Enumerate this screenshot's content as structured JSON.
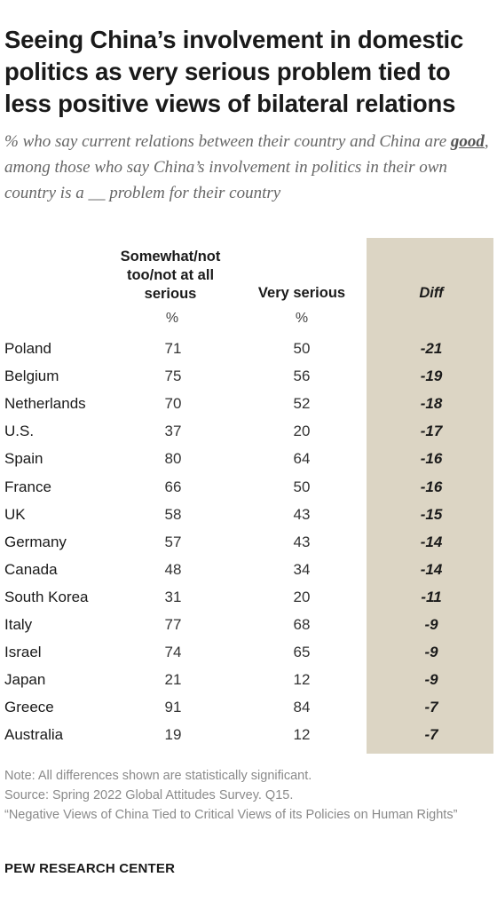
{
  "title": "Seeing China’s involvement in domestic politics as very serious problem tied to less positive views of bilateral relations",
  "subtitle_parts": {
    "before": "% who say current relations between their country and China are ",
    "emphasis": "good",
    "after": ", among those who say China’s involvement in politics in their own country is a __ problem for their country"
  },
  "columns": {
    "col1": "Somewhat/not too/not at all serious",
    "col2": "Very serious",
    "diff": "Diff",
    "unit1": "%",
    "unit2": "%"
  },
  "chart_data": {
    "type": "table",
    "columns": [
      "Somewhat/not too/not at all serious",
      "Very serious",
      "Diff"
    ],
    "rows": [
      {
        "country": "Poland",
        "somewhat": "71",
        "very": "50",
        "diff": "-21"
      },
      {
        "country": "Belgium",
        "somewhat": "75",
        "very": "56",
        "diff": "-19"
      },
      {
        "country": "Netherlands",
        "somewhat": "70",
        "very": "52",
        "diff": "-18"
      },
      {
        "country": "U.S.",
        "somewhat": "37",
        "very": "20",
        "diff": "-17"
      },
      {
        "country": "Spain",
        "somewhat": "80",
        "very": "64",
        "diff": "-16"
      },
      {
        "country": "France",
        "somewhat": "66",
        "very": "50",
        "diff": "-16"
      },
      {
        "country": "UK",
        "somewhat": "58",
        "very": "43",
        "diff": "-15"
      },
      {
        "country": "Germany",
        "somewhat": "57",
        "very": "43",
        "diff": "-14"
      },
      {
        "country": "Canada",
        "somewhat": "48",
        "very": "34",
        "diff": "-14"
      },
      {
        "country": "South Korea",
        "somewhat": "31",
        "very": "20",
        "diff": "-11"
      },
      {
        "country": "Italy",
        "somewhat": "77",
        "very": "68",
        "diff": "-9"
      },
      {
        "country": "Israel",
        "somewhat": "74",
        "very": "65",
        "diff": "-9"
      },
      {
        "country": "Japan",
        "somewhat": "21",
        "very": "12",
        "diff": "-9"
      },
      {
        "country": "Greece",
        "somewhat": "91",
        "very": "84",
        "diff": "-7"
      },
      {
        "country": "Australia",
        "somewhat": "19",
        "very": "12",
        "diff": "-7"
      }
    ],
    "diff_column_color": "#dcd5c4"
  },
  "notes": {
    "note": "Note: All differences shown are statistically significant.",
    "source": "Source: Spring 2022 Global Attitudes Survey. Q15.",
    "report": "“Negative Views of China Tied to Critical Views of its Policies on Human Rights”"
  },
  "org": "PEW RESEARCH CENTER"
}
